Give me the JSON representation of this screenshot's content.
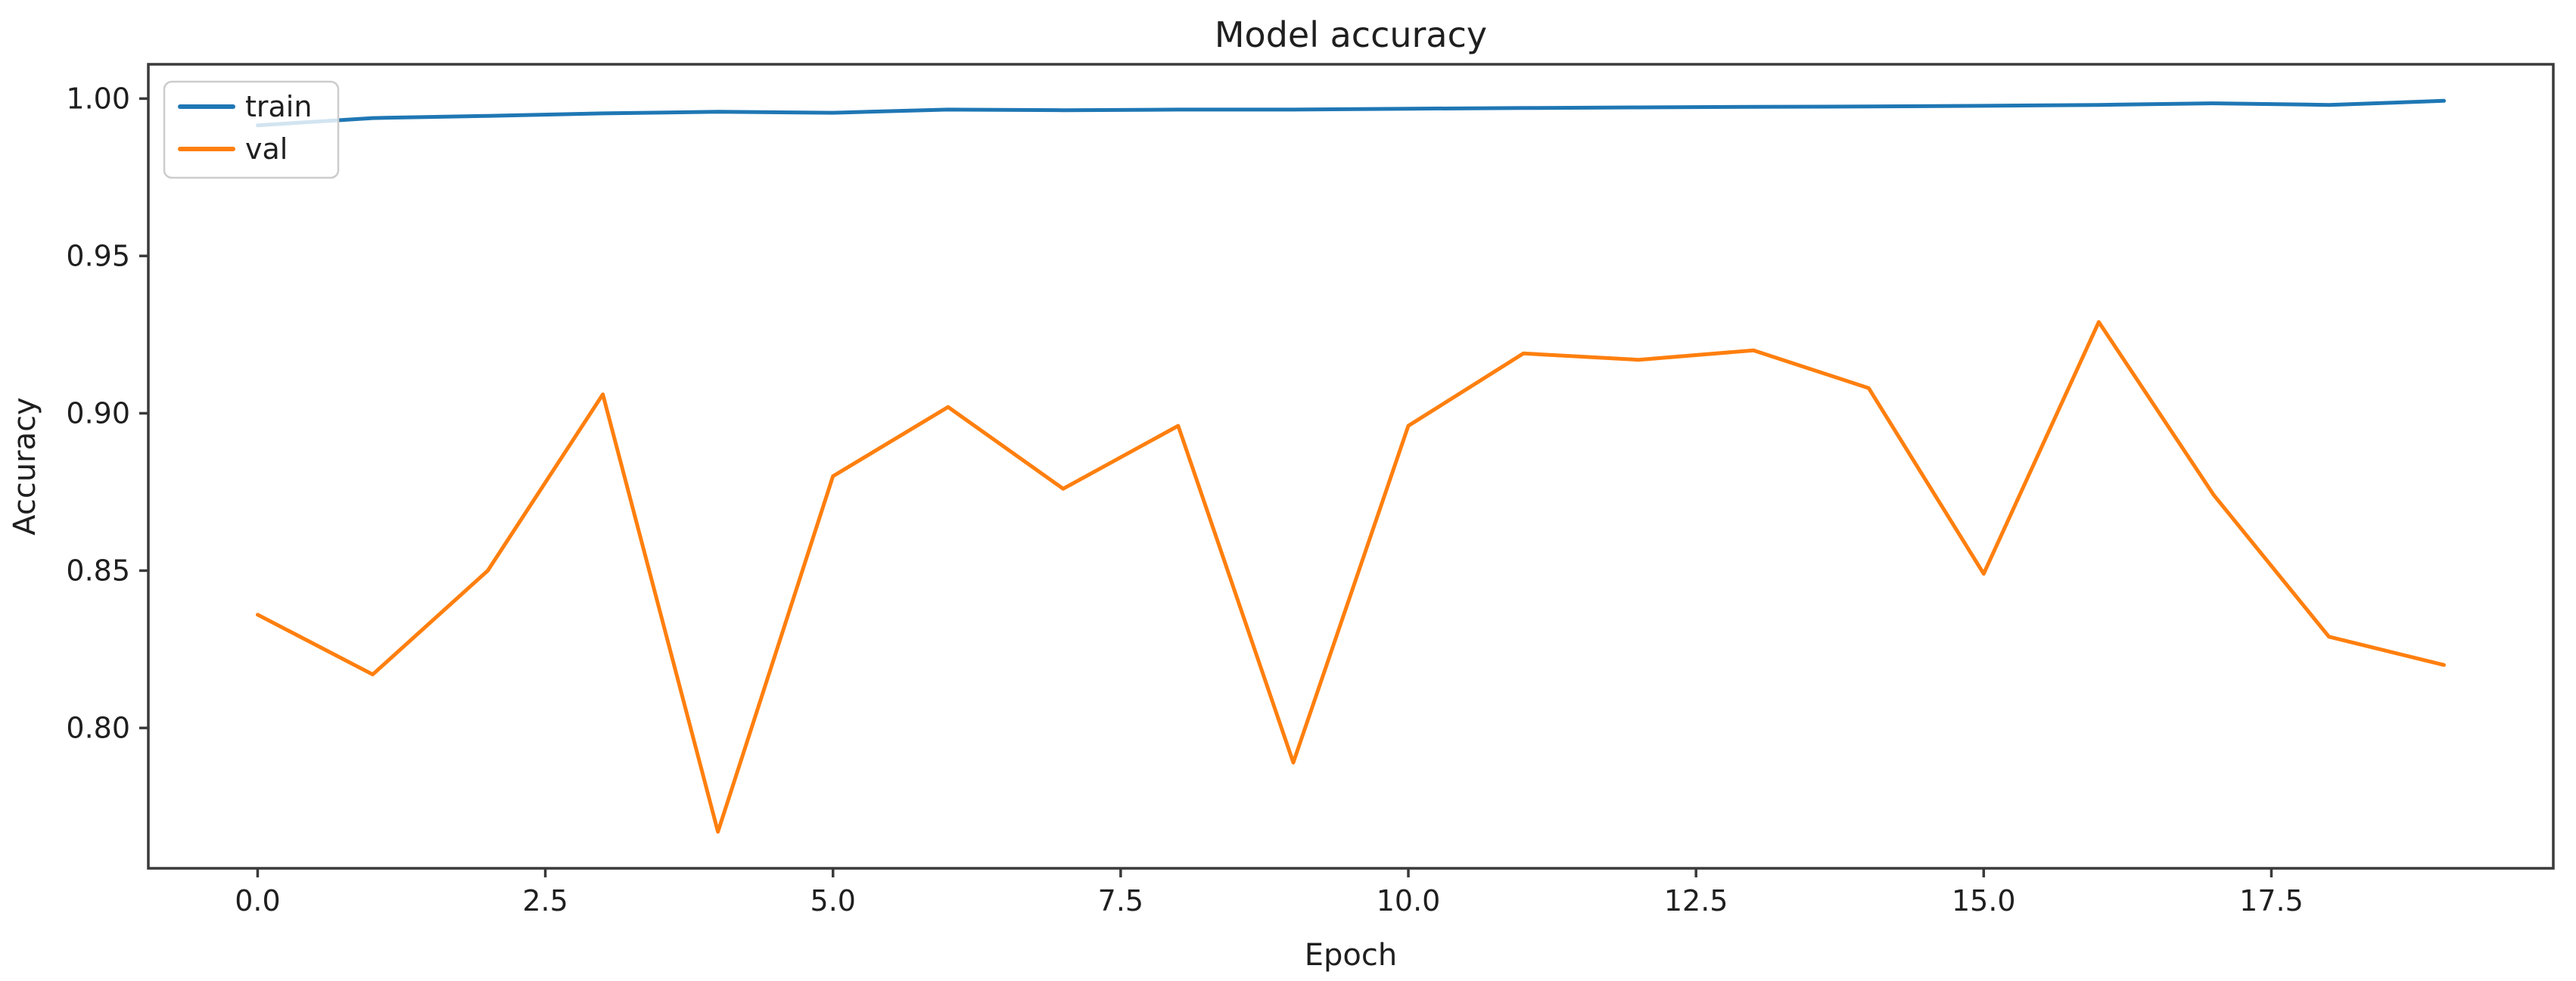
{
  "figure": {
    "background": "#ffffff",
    "spine_color": "#3a3a3a",
    "text_color": "#1f1f1f"
  },
  "chart_data": {
    "type": "line",
    "title": "Model accuracy",
    "xlabel": "Epoch",
    "ylabel": "Accuracy",
    "grid": false,
    "legend": {
      "position": "upper left",
      "entries": [
        "train",
        "val"
      ]
    },
    "x": [
      0,
      1,
      2,
      3,
      4,
      5,
      6,
      7,
      8,
      9,
      10,
      11,
      12,
      13,
      14,
      15,
      16,
      17,
      18,
      19
    ],
    "series": [
      {
        "name": "train",
        "color": "#1f77b4",
        "values": [
          0.9915,
          0.9938,
          0.9945,
          0.9953,
          0.9958,
          0.9955,
          0.9965,
          0.9963,
          0.9965,
          0.9965,
          0.9968,
          0.997,
          0.9972,
          0.9974,
          0.9975,
          0.9977,
          0.998,
          0.9985,
          0.998,
          0.9993
        ]
      },
      {
        "name": "val",
        "color": "#ff7f0e",
        "values": [
          0.836,
          0.817,
          0.85,
          0.906,
          0.767,
          0.88,
          0.902,
          0.876,
          0.896,
          0.789,
          0.896,
          0.919,
          0.917,
          0.92,
          0.908,
          0.849,
          0.929,
          0.874,
          0.829,
          0.82
        ]
      }
    ],
    "xticks": {
      "values": [
        0,
        2.5,
        5,
        7.5,
        10,
        12.5,
        15,
        17.5
      ],
      "labels": [
        "0.0",
        "2.5",
        "5.0",
        "7.5",
        "10.0",
        "12.5",
        "15.0",
        "17.5"
      ]
    },
    "yticks": {
      "values": [
        0.8,
        0.85,
        0.9,
        0.95,
        1.0
      ],
      "labels": [
        "0.80",
        "0.85",
        "0.90",
        "0.95",
        "1.00"
      ]
    },
    "xlim": [
      -0.95,
      19.95
    ],
    "ylim": [
      0.7554,
      1.0109
    ]
  }
}
